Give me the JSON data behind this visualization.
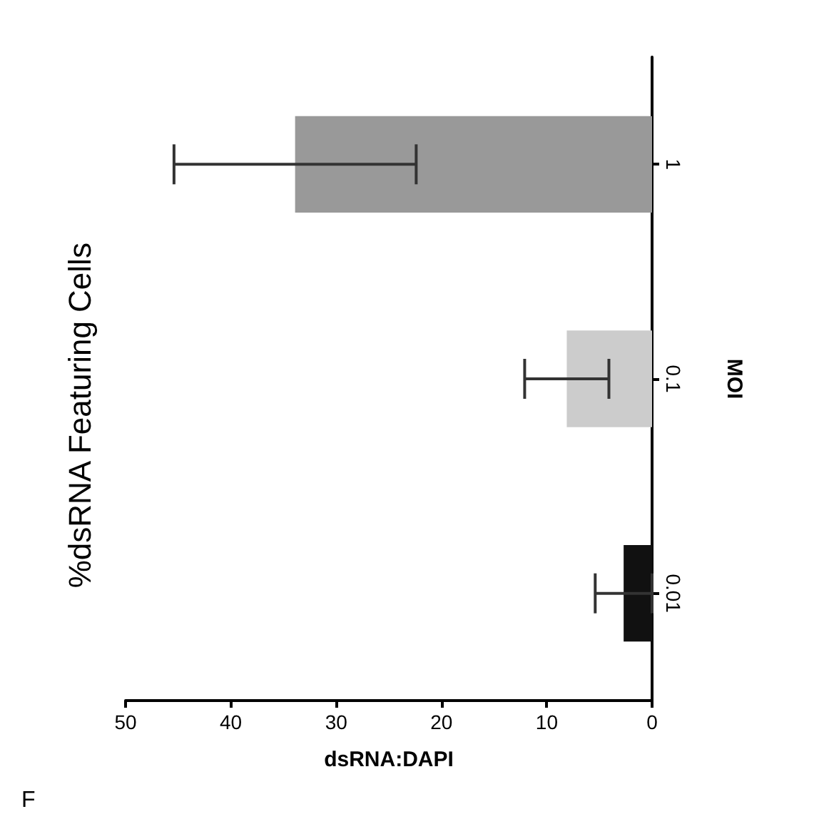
{
  "chart_data": {
    "type": "bar",
    "orientation": "horizontal",
    "title": "%dsRNA Featuring Cells",
    "xlabel": "dsRNA:DAPI",
    "ylabel": "MOI",
    "annotations": [
      "F"
    ],
    "categories": [
      "1",
      "0.1",
      "0.01"
    ],
    "values": [
      33.9,
      8.1,
      2.7
    ],
    "colors": [
      "#999999",
      "#cccccc",
      "#111111"
    ],
    "errors": [
      11.5,
      4,
      2.7
    ],
    "xlim": [
      50,
      0
    ],
    "xticks": [
      0,
      10,
      20,
      30,
      40,
      50
    ],
    "grid": false
  }
}
